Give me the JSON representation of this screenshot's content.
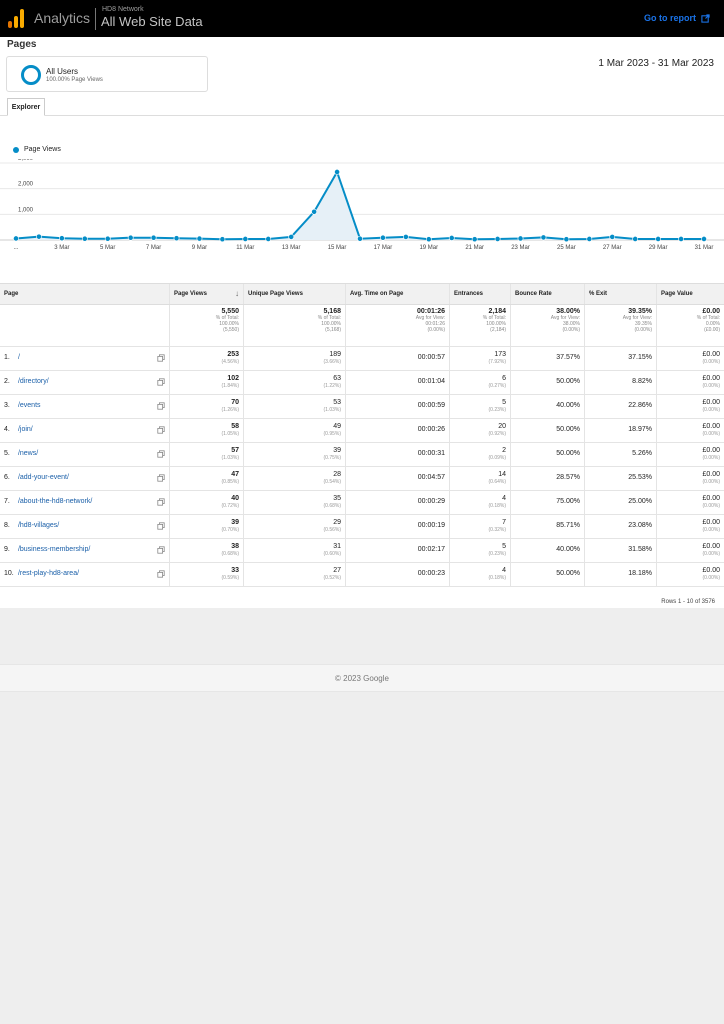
{
  "header": {
    "brand": "Analytics",
    "account": "HD8 Network",
    "property": "All Web Site Data",
    "goto_label": "Go to report",
    "colors": {
      "bar": "#000000",
      "accent": "#1a73e8",
      "logo_orange": "#f9ab00",
      "logo_dark": "#e37400"
    }
  },
  "page": {
    "title": "Pages",
    "segment": {
      "name": "All Users",
      "subtitle": "100.00% Page Views"
    },
    "date_range": "1 Mar 2023 - 31 Mar 2023",
    "tab": "Explorer"
  },
  "chart_data": {
    "type": "area",
    "legend": "Page Views",
    "color": "#058dc7",
    "ylim": [
      0,
      3000
    ],
    "yticks": [
      "3,000",
      "2,000",
      "1,000"
    ],
    "ytick_values": [
      3000,
      2000,
      1000
    ],
    "x_labels": [
      "...",
      "3 Mar",
      "5 Mar",
      "7 Mar",
      "9 Mar",
      "11 Mar",
      "13 Mar",
      "15 Mar",
      "17 Mar",
      "19 Mar",
      "21 Mar",
      "23 Mar",
      "25 Mar",
      "27 Mar",
      "29 Mar",
      "31 Mar"
    ],
    "x_label_days": [
      1,
      3,
      5,
      7,
      9,
      11,
      13,
      15,
      17,
      19,
      21,
      23,
      25,
      27,
      29,
      31
    ],
    "x": [
      1,
      2,
      3,
      4,
      5,
      6,
      7,
      8,
      9,
      10,
      11,
      12,
      13,
      14,
      15,
      16,
      17,
      18,
      19,
      20,
      21,
      22,
      23,
      24,
      25,
      26,
      27,
      28,
      29,
      30,
      31
    ],
    "values": [
      60,
      130,
      70,
      50,
      50,
      90,
      90,
      70,
      55,
      30,
      40,
      40,
      120,
      1100,
      2650,
      50,
      90,
      120,
      30,
      80,
      30,
      40,
      60,
      100,
      30,
      40,
      120,
      40,
      40,
      40,
      40
    ]
  },
  "table": {
    "headers": [
      "Page",
      "Page Views",
      "Unique Page Views",
      "Avg. Time on Page",
      "Entrances",
      "Bounce Rate",
      "% Exit",
      "Page Value"
    ],
    "totals": [
      {
        "value": "",
        "l1": "",
        "l2": "",
        "l3": ""
      },
      {
        "value": "5,550",
        "l1": "% of Total:",
        "l2": "100.00%",
        "l3": "(5,550)"
      },
      {
        "value": "5,168",
        "l1": "% of Total:",
        "l2": "100.00%",
        "l3": "(5,168)"
      },
      {
        "value": "00:01:26",
        "l1": "Avg for View:",
        "l2": "00:01:26",
        "l3": "(0.00%)"
      },
      {
        "value": "2,184",
        "l1": "% of Total:",
        "l2": "100.00%",
        "l3": "(2,184)"
      },
      {
        "value": "38.00%",
        "l1": "Avg for View:",
        "l2": "38.00%",
        "l3": "(0.00%)"
      },
      {
        "value": "39.35%",
        "l1": "Avg for View:",
        "l2": "39.35%",
        "l3": "(0.00%)"
      },
      {
        "value": "£0.00",
        "l1": "% of Total:",
        "l2": "0.00%",
        "l3": "(£0.00)"
      }
    ],
    "rows": [
      {
        "rank": "1.",
        "page": "/",
        "pv": "253",
        "pv_pct": "(4.56%)",
        "upv": "189",
        "upv_pct": "(3.66%)",
        "avg": "00:00:57",
        "ent": "173",
        "ent_pct": "(7.92%)",
        "bounce": "37.57%",
        "exit": "37.15%",
        "value": "£0.00",
        "value_pct": "(0.00%)"
      },
      {
        "rank": "2.",
        "page": "/directory/",
        "pv": "102",
        "pv_pct": "(1.84%)",
        "upv": "63",
        "upv_pct": "(1.22%)",
        "avg": "00:01:04",
        "ent": "6",
        "ent_pct": "(0.27%)",
        "bounce": "50.00%",
        "exit": "8.82%",
        "value": "£0.00",
        "value_pct": "(0.00%)"
      },
      {
        "rank": "3.",
        "page": "/events",
        "pv": "70",
        "pv_pct": "(1.26%)",
        "upv": "53",
        "upv_pct": "(1.03%)",
        "avg": "00:00:59",
        "ent": "5",
        "ent_pct": "(0.23%)",
        "bounce": "40.00%",
        "exit": "22.86%",
        "value": "£0.00",
        "value_pct": "(0.00%)"
      },
      {
        "rank": "4.",
        "page": "/join/",
        "pv": "58",
        "pv_pct": "(1.05%)",
        "upv": "49",
        "upv_pct": "(0.95%)",
        "avg": "00:00:26",
        "ent": "20",
        "ent_pct": "(0.92%)",
        "bounce": "50.00%",
        "exit": "18.97%",
        "value": "£0.00",
        "value_pct": "(0.00%)"
      },
      {
        "rank": "5.",
        "page": "/news/",
        "pv": "57",
        "pv_pct": "(1.03%)",
        "upv": "39",
        "upv_pct": "(0.75%)",
        "avg": "00:00:31",
        "ent": "2",
        "ent_pct": "(0.09%)",
        "bounce": "50.00%",
        "exit": "5.26%",
        "value": "£0.00",
        "value_pct": "(0.00%)"
      },
      {
        "rank": "6.",
        "page": "/add-your-event/",
        "pv": "47",
        "pv_pct": "(0.85%)",
        "upv": "28",
        "upv_pct": "(0.54%)",
        "avg": "00:04:57",
        "ent": "14",
        "ent_pct": "(0.64%)",
        "bounce": "28.57%",
        "exit": "25.53%",
        "value": "£0.00",
        "value_pct": "(0.00%)"
      },
      {
        "rank": "7.",
        "page": "/about-the-hd8-network/",
        "pv": "40",
        "pv_pct": "(0.72%)",
        "upv": "35",
        "upv_pct": "(0.68%)",
        "avg": "00:00:29",
        "ent": "4",
        "ent_pct": "(0.18%)",
        "bounce": "75.00%",
        "exit": "25.00%",
        "value": "£0.00",
        "value_pct": "(0.00%)"
      },
      {
        "rank": "8.",
        "page": "/hd8-villages/",
        "pv": "39",
        "pv_pct": "(0.70%)",
        "upv": "29",
        "upv_pct": "(0.56%)",
        "avg": "00:00:19",
        "ent": "7",
        "ent_pct": "(0.32%)",
        "bounce": "85.71%",
        "exit": "23.08%",
        "value": "£0.00",
        "value_pct": "(0.00%)"
      },
      {
        "rank": "9.",
        "page": "/business-membership/",
        "pv": "38",
        "pv_pct": "(0.68%)",
        "upv": "31",
        "upv_pct": "(0.60%)",
        "avg": "00:02:17",
        "ent": "5",
        "ent_pct": "(0.23%)",
        "bounce": "40.00%",
        "exit": "31.58%",
        "value": "£0.00",
        "value_pct": "(0.00%)"
      },
      {
        "rank": "10.",
        "page": "/rest-play-hd8-area/",
        "pv": "33",
        "pv_pct": "(0.59%)",
        "upv": "27",
        "upv_pct": "(0.52%)",
        "avg": "00:00:23",
        "ent": "4",
        "ent_pct": "(0.18%)",
        "bounce": "50.00%",
        "exit": "18.18%",
        "value": "£0.00",
        "value_pct": "(0.00%)"
      }
    ],
    "rows_info": "Rows 1 - 10 of 3576"
  },
  "footer": {
    "copyright": "© 2023 Google"
  }
}
